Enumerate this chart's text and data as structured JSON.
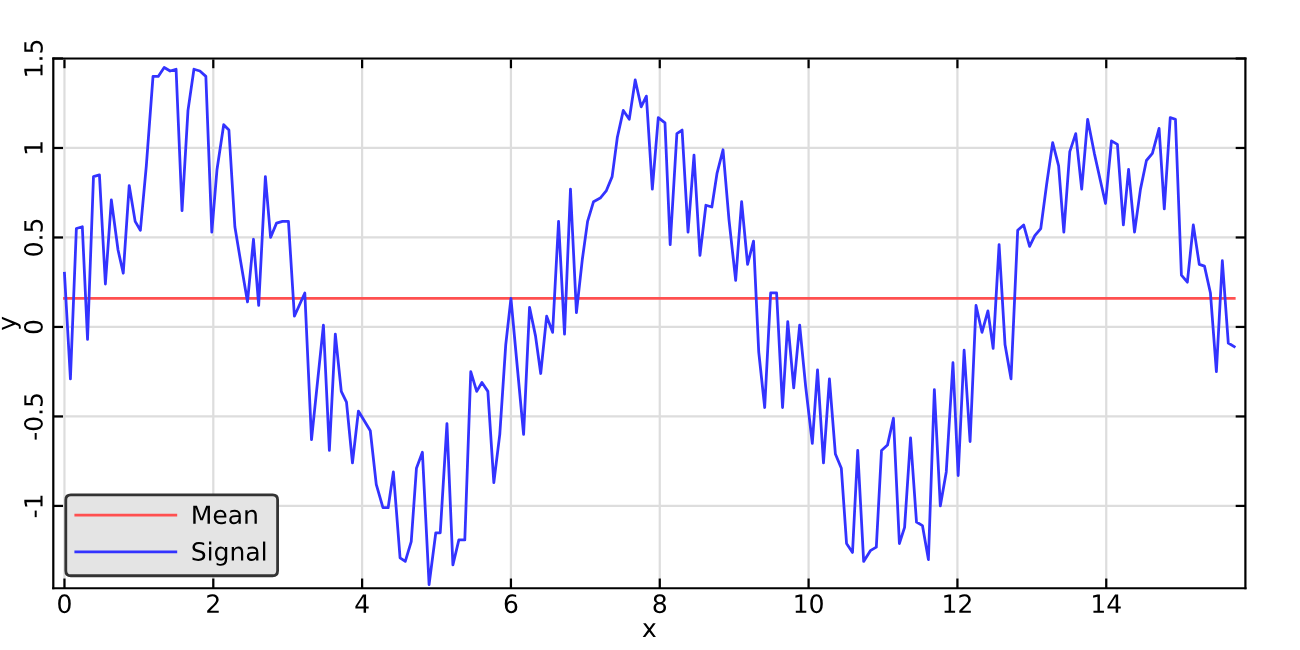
{
  "chart_data": {
    "type": "line",
    "xlabel": "x",
    "ylabel": "y",
    "xlim": [
      -0.15,
      15.87
    ],
    "ylim": [
      -1.46,
      1.5
    ],
    "xticks": [
      0,
      2,
      4,
      6,
      8,
      10,
      12,
      14
    ],
    "yticks": [
      -1,
      -0.5,
      0,
      0.5,
      1,
      1.5
    ],
    "grid": true,
    "legend": "bottom left",
    "marker": "none",
    "line_style": "solid",
    "series": [
      {
        "name": "Mean",
        "color": "#ff5050",
        "x": [
          0,
          15.72
        ],
        "values": [
          0.16,
          0.16
        ]
      },
      {
        "name": "Signal",
        "color": "#3333ff",
        "x": [
          0,
          0.08,
          0.16,
          0.24,
          0.31,
          0.39,
          0.47,
          0.55,
          0.63,
          0.72,
          0.79,
          0.87,
          0.95,
          1.02,
          1.1,
          1.19,
          1.26,
          1.34,
          1.42,
          1.5,
          1.58,
          1.66,
          1.74,
          1.82,
          1.9,
          1.98,
          2.05,
          2.14,
          2.21,
          2.29,
          2.37,
          2.46,
          2.54,
          2.61,
          2.7,
          2.77,
          2.85,
          2.93,
          3.01,
          3.09,
          3.23,
          3.32,
          3.48,
          3.56,
          3.64,
          3.72,
          3.79,
          3.87,
          3.95,
          4.11,
          4.19,
          4.28,
          4.35,
          4.42,
          4.51,
          4.58,
          4.66,
          4.73,
          4.81,
          4.9,
          4.99,
          5.05,
          5.14,
          5.22,
          5.3,
          5.38,
          5.46,
          5.54,
          5.61,
          5.69,
          5.77,
          5.85,
          5.93,
          6.0,
          6.08,
          6.17,
          6.25,
          6.33,
          6.4,
          6.48,
          6.56,
          6.64,
          6.72,
          6.8,
          6.88,
          6.96,
          7.03,
          7.11,
          7.2,
          7.28,
          7.36,
          7.43,
          7.51,
          7.59,
          7.67,
          7.75,
          7.82,
          7.9,
          7.98,
          8.07,
          8.14,
          8.23,
          8.3,
          8.38,
          8.46,
          8.54,
          8.62,
          8.7,
          8.77,
          8.85,
          8.93,
          9.02,
          9.1,
          9.18,
          9.26,
          9.33,
          9.41,
          9.49,
          9.57,
          9.65,
          9.72,
          9.8,
          9.88,
          9.96,
          10.05,
          10.12,
          10.2,
          10.28,
          10.36,
          10.44,
          10.51,
          10.59,
          10.66,
          10.74,
          10.83,
          10.91,
          10.98,
          11.06,
          11.14,
          11.22,
          11.29,
          11.37,
          11.45,
          11.53,
          11.61,
          11.69,
          11.77,
          11.85,
          11.94,
          12.01,
          12.09,
          12.17,
          12.25,
          12.33,
          12.41,
          12.48,
          12.56,
          12.64,
          12.72,
          12.81,
          12.89,
          12.97,
          13.04,
          13.12,
          13.2,
          13.28,
          13.36,
          13.43,
          13.51,
          13.59,
          13.67,
          13.75,
          13.84,
          13.92,
          13.99,
          14.07,
          14.15,
          14.23,
          14.3,
          14.38,
          14.46,
          14.54,
          14.62,
          14.71,
          14.78,
          14.86,
          14.93,
          15.01,
          15.09,
          15.17,
          15.25,
          15.32,
          15.4,
          15.48,
          15.56,
          15.64,
          15.72
        ],
        "values": [
          0.3,
          -0.29,
          0.55,
          0.56,
          -0.07,
          0.84,
          0.85,
          0.24,
          0.71,
          0.43,
          0.3,
          0.79,
          0.59,
          0.54,
          0.9,
          1.4,
          1.4,
          1.45,
          1.43,
          1.44,
          0.65,
          1.21,
          1.44,
          1.43,
          1.4,
          0.53,
          0.88,
          1.13,
          1.1,
          0.56,
          0.36,
          0.14,
          0.49,
          0.12,
          0.84,
          0.5,
          0.58,
          0.59,
          0.59,
          0.06,
          0.19,
          -0.63,
          0.01,
          -0.69,
          -0.04,
          -0.36,
          -0.42,
          -0.76,
          -0.47,
          -0.58,
          -0.88,
          -1.01,
          -1.01,
          -0.81,
          -1.29,
          -1.31,
          -1.2,
          -0.79,
          -0.7,
          -1.44,
          -1.15,
          -1.15,
          -0.54,
          -1.33,
          -1.19,
          -1.19,
          -0.25,
          -0.36,
          -0.31,
          -0.36,
          -0.87,
          -0.6,
          -0.1,
          0.16,
          -0.2,
          -0.6,
          0.11,
          -0.05,
          -0.26,
          0.06,
          -0.03,
          0.59,
          -0.04,
          0.77,
          0.08,
          0.38,
          0.59,
          0.7,
          0.72,
          0.76,
          0.84,
          1.06,
          1.21,
          1.16,
          1.38,
          1.23,
          1.29,
          0.77,
          1.17,
          1.14,
          0.46,
          1.08,
          1.1,
          0.53,
          0.96,
          0.4,
          0.68,
          0.67,
          0.86,
          0.99,
          0.6,
          0.26,
          0.7,
          0.35,
          0.48,
          -0.14,
          -0.45,
          0.19,
          0.19,
          -0.45,
          0.03,
          -0.34,
          0.01,
          -0.33,
          -0.65,
          -0.24,
          -0.76,
          -0.29,
          -0.71,
          -0.79,
          -1.21,
          -1.26,
          -0.69,
          -1.31,
          -1.25,
          -1.23,
          -0.69,
          -0.66,
          -0.51,
          -1.21,
          -1.12,
          -0.62,
          -1.09,
          -1.11,
          -1.3,
          -0.35,
          -1.0,
          -0.81,
          -0.2,
          -0.83,
          -0.13,
          -0.64,
          0.12,
          -0.03,
          0.09,
          -0.12,
          0.46,
          -0.1,
          -0.29,
          0.54,
          0.57,
          0.45,
          0.51,
          0.55,
          0.8,
          1.03,
          0.9,
          0.53,
          0.98,
          1.08,
          0.77,
          1.16,
          0.97,
          0.82,
          0.69,
          1.04,
          1.02,
          0.57,
          0.88,
          0.53,
          0.77,
          0.93,
          0.97,
          1.11,
          0.66,
          1.17,
          1.16,
          0.29,
          0.25,
          0.57,
          0.35,
          0.34,
          0.19,
          -0.25,
          0.37,
          -0.09,
          -0.11
        ]
      }
    ]
  }
}
